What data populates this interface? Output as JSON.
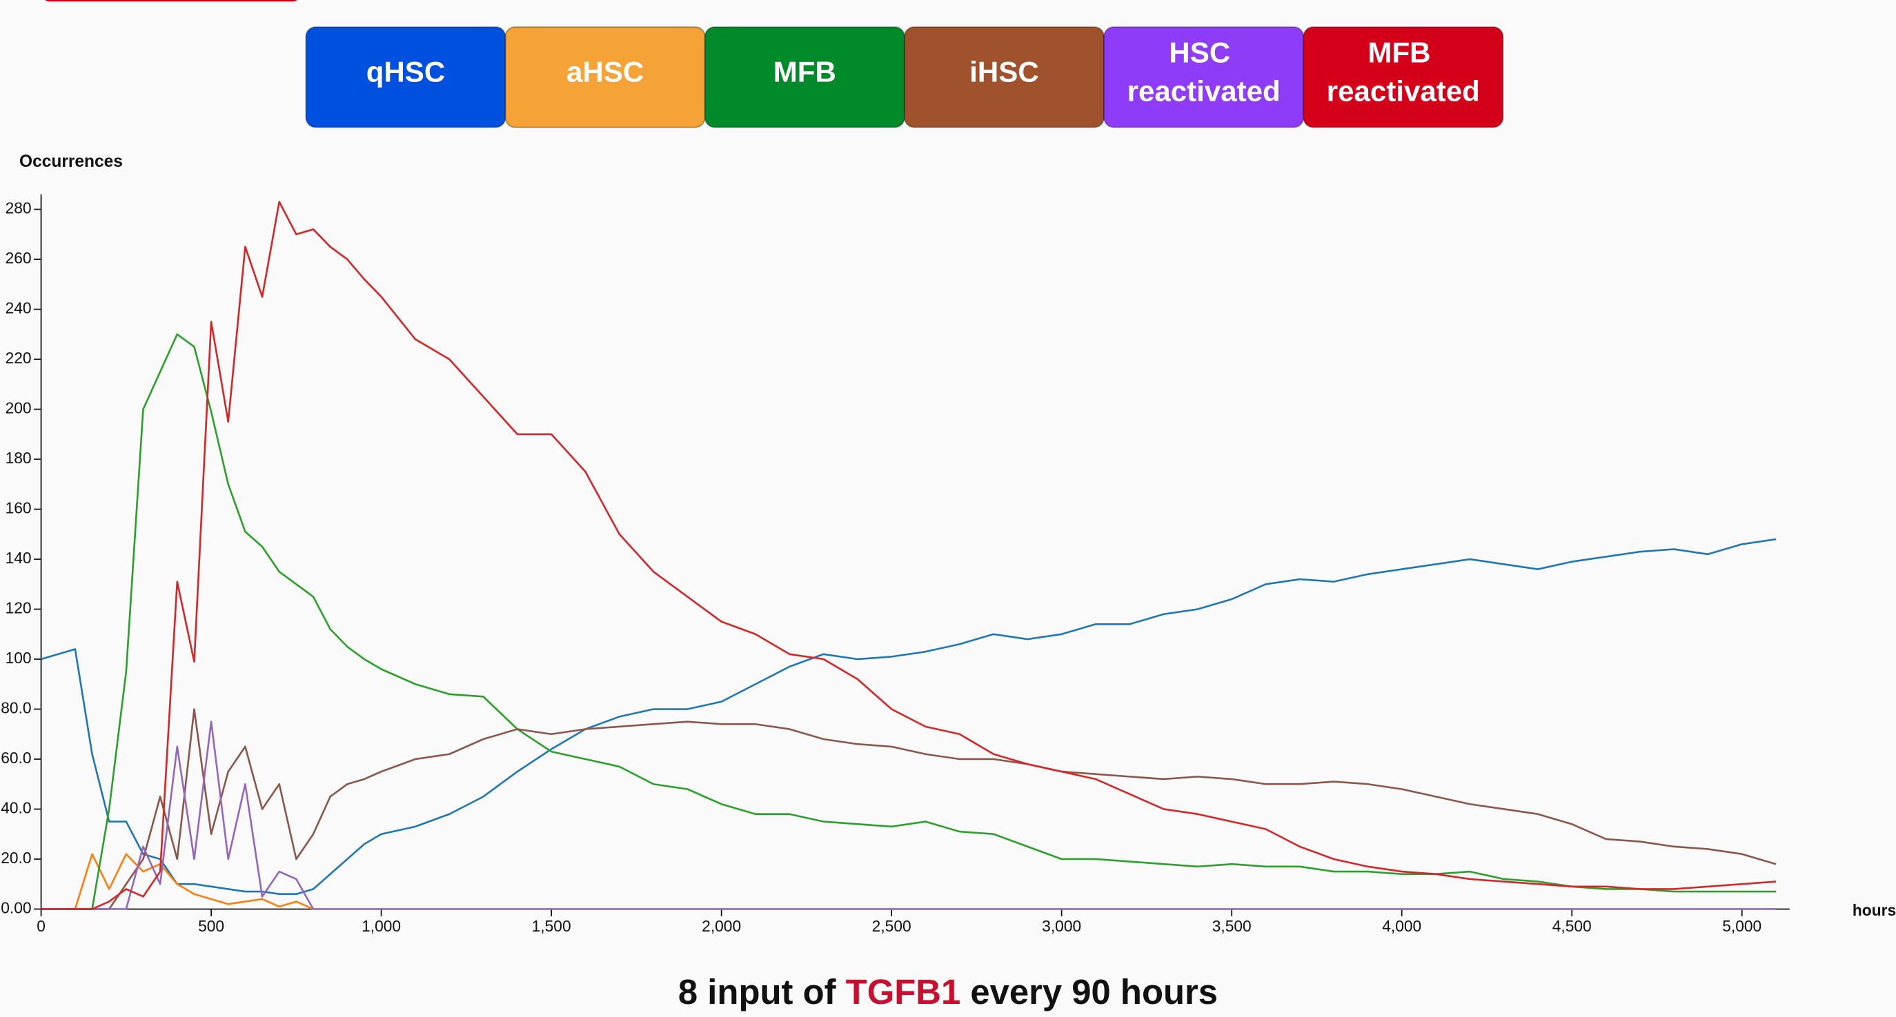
{
  "chart_data": {
    "type": "line",
    "title_parts": [
      "8 input of ",
      "TGFB1",
      " every 90 hours"
    ],
    "title_colors": [
      "#111111",
      "#c8102e",
      "#111111"
    ],
    "ylabel": "Occurrences",
    "xlabel": "hours",
    "xlim": [
      0,
      5140
    ],
    "ylim": [
      0,
      286
    ],
    "xticks": [
      0,
      500,
      {
        "value": 1000,
        "label": "1,000"
      },
      {
        "value": 1500,
        "label": "1,500"
      },
      {
        "value": 2000,
        "label": "2,000"
      },
      {
        "value": 2500,
        "label": "2,500"
      },
      {
        "value": 3000,
        "label": "3,000"
      },
      {
        "value": 3500,
        "label": "3,500"
      },
      {
        "value": 4000,
        "label": "4,000"
      },
      {
        "value": 4500,
        "label": "4,500"
      },
      {
        "value": 5000,
        "label": "5,000"
      }
    ],
    "yticks": [
      {
        "value": 0,
        "label": "0.00"
      },
      {
        "value": 20,
        "label": "20.0"
      },
      {
        "value": 40,
        "label": "40.0"
      },
      {
        "value": 60,
        "label": "60.0"
      },
      {
        "value": 80,
        "label": "80.0"
      },
      100,
      120,
      140,
      160,
      180,
      200,
      220,
      240,
      260,
      280
    ],
    "x": [
      0,
      50,
      100,
      150,
      200,
      250,
      300,
      350,
      400,
      450,
      500,
      550,
      600,
      650,
      700,
      750,
      800,
      850,
      900,
      950,
      1000,
      1100,
      1200,
      1300,
      1400,
      1500,
      1600,
      1700,
      1800,
      1900,
      2000,
      2100,
      2200,
      2300,
      2400,
      2500,
      2600,
      2700,
      2800,
      2900,
      3000,
      3100,
      3200,
      3300,
      3400,
      3500,
      3600,
      3700,
      3800,
      3900,
      4000,
      4100,
      4200,
      4300,
      4400,
      4500,
      4600,
      4700,
      4800,
      4900,
      5000,
      5100
    ],
    "series": [
      {
        "name": "qHSC",
        "color": "#1f77b4",
        "button_color": "#0050e0",
        "values": [
          100,
          102,
          104,
          62,
          35,
          35,
          22,
          20,
          10,
          10,
          9,
          8,
          7,
          7,
          6,
          6,
          8,
          14,
          20,
          26,
          30,
          33,
          38,
          45,
          55,
          64,
          72,
          77,
          80,
          80,
          83,
          90,
          97,
          102,
          100,
          101,
          103,
          106,
          110,
          108,
          110,
          114,
          114,
          118,
          120,
          124,
          130,
          132,
          131,
          134,
          136,
          138,
          140,
          138,
          136,
          139,
          141,
          143,
          144,
          142,
          146,
          148
        ]
      },
      {
        "name": "aHSC",
        "color": "#ff7f0e",
        "button_color": "#f5a236",
        "values": [
          0,
          0,
          0,
          22,
          8,
          22,
          15,
          18,
          10,
          6,
          4,
          2,
          3,
          4,
          1,
          3,
          0,
          null,
          null,
          null,
          null,
          null,
          null,
          null,
          null,
          null,
          null,
          null,
          null,
          null,
          null,
          null,
          null,
          null,
          null,
          null,
          null,
          null,
          null,
          null,
          null,
          null,
          null,
          null,
          null,
          null,
          null,
          null,
          null,
          null,
          null,
          null,
          null,
          null,
          null,
          null,
          null,
          null,
          null,
          null,
          null,
          null
        ]
      },
      {
        "name": "MFB",
        "color": "#2ca02c",
        "button_color": "#008a2a",
        "values": [
          0,
          0,
          0,
          0,
          40,
          95,
          200,
          215,
          230,
          225,
          199,
          170,
          151,
          145,
          135,
          130,
          125,
          112,
          105,
          100,
          96,
          90,
          86,
          85,
          72,
          63,
          60,
          57,
          50,
          48,
          42,
          38,
          38,
          35,
          34,
          33,
          35,
          31,
          30,
          25,
          20,
          20,
          19,
          18,
          17,
          18,
          17,
          17,
          15,
          15,
          14,
          14,
          15,
          12,
          11,
          9,
          8,
          8,
          7,
          7,
          7,
          7
        ]
      },
      {
        "name": "iHSC",
        "color": "#8c564b",
        "button_color": "#a0522d",
        "values": [
          0,
          0,
          0,
          0,
          0,
          10,
          20,
          45,
          20,
          80,
          30,
          55,
          65,
          40,
          50,
          20,
          30,
          45,
          50,
          52,
          55,
          60,
          62,
          68,
          72,
          70,
          72,
          73,
          74,
          75,
          74,
          74,
          72,
          68,
          66,
          65,
          62,
          60,
          60,
          58,
          55,
          54,
          53,
          52,
          53,
          52,
          50,
          50,
          51,
          50,
          48,
          45,
          42,
          40,
          38,
          34,
          28,
          27,
          25,
          24,
          22,
          18
        ]
      },
      {
        "name": "HSC reactivated",
        "color": "#9467bd",
        "button_color": "#8e3cf7",
        "values": [
          0,
          0,
          0,
          0,
          0,
          0,
          25,
          10,
          65,
          20,
          75,
          20,
          50,
          5,
          15,
          12,
          0,
          0,
          0,
          0,
          0,
          0,
          0,
          0,
          0,
          0,
          0,
          0,
          0,
          0,
          0,
          0,
          0,
          0,
          0,
          0,
          0,
          0,
          0,
          0,
          0,
          0,
          0,
          0,
          0,
          0,
          0,
          0,
          0,
          0,
          0,
          0,
          0,
          0,
          0,
          0,
          0,
          0,
          0,
          0,
          0,
          0
        ]
      },
      {
        "name": "MFB reactivated",
        "color": "#d62728",
        "button_color": "#d4001a",
        "values": [
          0,
          0,
          0,
          0,
          3,
          8,
          5,
          15,
          131,
          99,
          235,
          195,
          265,
          245,
          283,
          270,
          272,
          265,
          260,
          252,
          245,
          228,
          220,
          205,
          190,
          190,
          175,
          150,
          135,
          125,
          115,
          110,
          102,
          100,
          92,
          80,
          73,
          70,
          62,
          58,
          55,
          52,
          46,
          40,
          38,
          35,
          32,
          25,
          20,
          17,
          15,
          14,
          12,
          11,
          10,
          9,
          9,
          8,
          8,
          9,
          10,
          11
        ]
      }
    ]
  }
}
